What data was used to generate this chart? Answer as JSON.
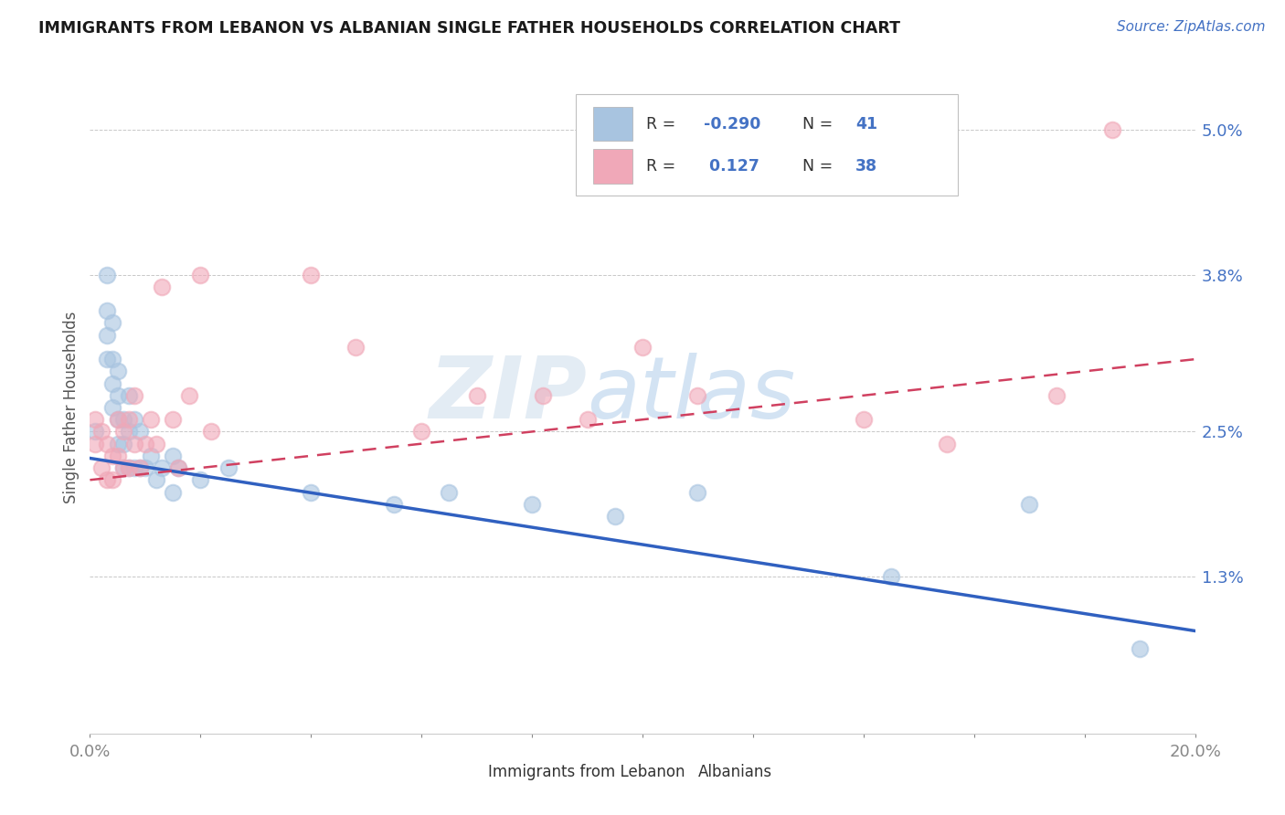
{
  "title": "IMMIGRANTS FROM LEBANON VS ALBANIAN SINGLE FATHER HOUSEHOLDS CORRELATION CHART",
  "source": "Source: ZipAtlas.com",
  "ylabel": "Single Father Households",
  "xlim": [
    0.0,
    0.2
  ],
  "ylim": [
    0.0,
    0.054
  ],
  "yticks_right": [
    0.013,
    0.025,
    0.038,
    0.05
  ],
  "yticks_right_labels": [
    "1.3%",
    "2.5%",
    "3.8%",
    "5.0%"
  ],
  "grid_color": "#c8c8c8",
  "background_color": "#ffffff",
  "watermark_zip": "ZIP",
  "watermark_atlas": "atlas",
  "series1_color": "#a8c4e0",
  "series2_color": "#f0a8b8",
  "line1_color": "#3060c0",
  "line2_color": "#d04060",
  "line1_start_y": 0.0228,
  "line1_end_y": 0.0085,
  "line2_start_y": 0.021,
  "line2_end_y": 0.031,
  "lebanon_x": [
    0.001,
    0.003,
    0.003,
    0.003,
    0.003,
    0.004,
    0.004,
    0.004,
    0.004,
    0.005,
    0.005,
    0.005,
    0.005,
    0.006,
    0.006,
    0.006,
    0.007,
    0.007,
    0.007,
    0.008,
    0.008,
    0.009,
    0.009,
    0.01,
    0.011,
    0.012,
    0.013,
    0.015,
    0.015,
    0.016,
    0.02,
    0.025,
    0.04,
    0.055,
    0.065,
    0.08,
    0.095,
    0.11,
    0.145,
    0.17,
    0.19
  ],
  "lebanon_y": [
    0.025,
    0.031,
    0.033,
    0.035,
    0.038,
    0.027,
    0.029,
    0.031,
    0.034,
    0.024,
    0.026,
    0.028,
    0.03,
    0.022,
    0.024,
    0.026,
    0.022,
    0.025,
    0.028,
    0.022,
    0.026,
    0.022,
    0.025,
    0.022,
    0.023,
    0.021,
    0.022,
    0.02,
    0.023,
    0.022,
    0.021,
    0.022,
    0.02,
    0.019,
    0.02,
    0.019,
    0.018,
    0.02,
    0.013,
    0.019,
    0.007
  ],
  "albanian_x": [
    0.001,
    0.001,
    0.002,
    0.002,
    0.003,
    0.003,
    0.004,
    0.004,
    0.005,
    0.005,
    0.006,
    0.006,
    0.007,
    0.007,
    0.008,
    0.008,
    0.009,
    0.01,
    0.011,
    0.012,
    0.013,
    0.015,
    0.016,
    0.018,
    0.02,
    0.022,
    0.04,
    0.048,
    0.06,
    0.07,
    0.082,
    0.09,
    0.1,
    0.11,
    0.14,
    0.155,
    0.175,
    0.185
  ],
  "albanian_y": [
    0.024,
    0.026,
    0.022,
    0.025,
    0.021,
    0.024,
    0.021,
    0.023,
    0.023,
    0.026,
    0.022,
    0.025,
    0.022,
    0.026,
    0.024,
    0.028,
    0.022,
    0.024,
    0.026,
    0.024,
    0.037,
    0.026,
    0.022,
    0.028,
    0.038,
    0.025,
    0.038,
    0.032,
    0.025,
    0.028,
    0.028,
    0.026,
    0.032,
    0.028,
    0.026,
    0.024,
    0.028,
    0.05
  ]
}
